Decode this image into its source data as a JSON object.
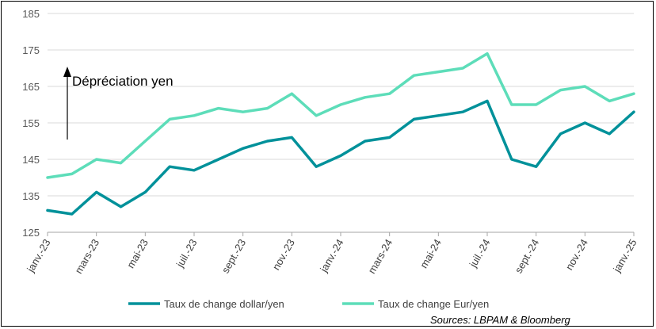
{
  "chart_data": {
    "type": "line",
    "ylim": [
      125,
      185
    ],
    "yticks": [
      125,
      135,
      145,
      155,
      165,
      175,
      185
    ],
    "grid": "horizontal",
    "legend_position": "bottom",
    "x_tick_labels": [
      "janv.-23",
      "mars-23",
      "mai-23",
      "juil.-23",
      "sept.-23",
      "nov.-23",
      "janv.-24",
      "mars-24",
      "mai-24",
      "juil.-24",
      "sept.-24",
      "nov.-24",
      "janv.-25"
    ],
    "x": [
      "2023-01",
      "2023-02",
      "2023-03",
      "2023-04",
      "2023-05",
      "2023-06",
      "2023-07",
      "2023-08",
      "2023-09",
      "2023-10",
      "2023-11",
      "2023-12",
      "2024-01",
      "2024-02",
      "2024-03",
      "2024-04",
      "2024-05",
      "2024-06",
      "2024-07",
      "2024-08",
      "2024-09",
      "2024-10",
      "2024-11",
      "2024-12",
      "2025-01"
    ],
    "series": [
      {
        "name": "Taux de change dollar/yen",
        "color": "#00919A",
        "values": [
          131,
          130,
          136,
          132,
          136,
          143,
          142,
          145,
          148,
          150,
          151,
          143,
          146,
          150,
          151,
          156,
          157,
          158,
          161,
          145,
          143,
          152,
          155,
          152,
          158
        ]
      },
      {
        "name": "Taux de change Eur/yen",
        "color": "#5DDDB9",
        "values": [
          140,
          141,
          145,
          144,
          150,
          156,
          157,
          159,
          158,
          159,
          163,
          157,
          160,
          162,
          163,
          168,
          169,
          170,
          174,
          160,
          160,
          164,
          165,
          161,
          163
        ]
      }
    ],
    "annotation": "Dépréciation yen",
    "source": "Sources: LBPAM & Bloomberg"
  }
}
